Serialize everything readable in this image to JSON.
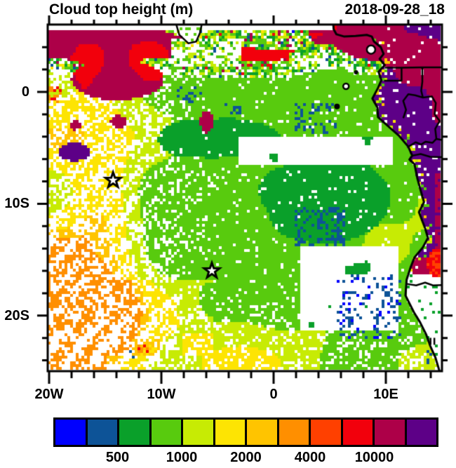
{
  "window": {
    "title": "Cloud top height (m)",
    "timestamp": "2018-09-28_18"
  },
  "axes": {
    "x_ticks": [
      {
        "label": "20W",
        "lon": -20
      },
      {
        "label": "10W",
        "lon": -10
      },
      {
        "label": "0",
        "lon": 0
      },
      {
        "label": "10E",
        "lon": 10
      }
    ],
    "y_ticks": [
      {
        "label": "0",
        "lat": 0
      },
      {
        "label": "10S",
        "lat": -10
      },
      {
        "label": "20S",
        "lat": -20
      }
    ],
    "minor_tick_interval_deg": 2
  },
  "colorbar": {
    "colors": [
      "#0000FE",
      "#0D5397",
      "#0AA02A",
      "#58CB0E",
      "#C7EB04",
      "#FDE403",
      "#FFC400",
      "#FF8F00",
      "#FF4000",
      "#F2000C",
      "#AD0048",
      "#5D0087"
    ],
    "labels": [
      {
        "text": "500",
        "boundary": 2
      },
      {
        "text": "1000",
        "boundary": 4
      },
      {
        "text": "2000",
        "boundary": 6
      },
      {
        "text": "4000",
        "boundary": 8
      },
      {
        "text": "10000",
        "boundary": 10
      }
    ]
  },
  "chart_data": {
    "type": "heatmap",
    "title": "Cloud top height (m)",
    "timestamp": "2018-09-28_18",
    "units": "m",
    "lon_range": [
      -20,
      15
    ],
    "lat_range": [
      -25,
      6
    ],
    "grid_on": false,
    "legend_position": "bottom",
    "labeled_levels": [
      500,
      1000,
      2000,
      4000,
      10000
    ],
    "markers": [
      {
        "type": "star",
        "lon": -14.3,
        "lat": -7.9
      },
      {
        "type": "star",
        "lon": -5.5,
        "lat": -16.0
      }
    ],
    "islands": [
      {
        "name": "bioko",
        "lon": 8.68,
        "lat": 3.78,
        "style": "ring",
        "r": 6
      },
      {
        "name": "principe",
        "lon": 7.35,
        "lat": 1.75,
        "style": "dot",
        "r": 3
      },
      {
        "name": "sao-tome",
        "lon": 6.45,
        "lat": 0.5,
        "style": "ring",
        "r": 4
      },
      {
        "name": "annobon",
        "lon": 5.65,
        "lat": -1.3,
        "style": "dot",
        "r": 4
      }
    ],
    "port_symbol": {
      "lon": 14.15,
      "lat": -22.3
    },
    "coastline": [
      [
        5.3,
        6.3
      ],
      [
        5.35,
        5.6
      ],
      [
        5.6,
        5.15
      ],
      [
        6.3,
        4.95
      ],
      [
        7.3,
        5.0
      ],
      [
        8.3,
        5.1
      ],
      [
        8.75,
        4.95
      ],
      [
        8.95,
        4.5
      ],
      [
        9.55,
        4.0
      ],
      [
        9.8,
        3.4
      ],
      [
        9.45,
        2.95
      ],
      [
        9.9,
        2.4
      ],
      [
        9.35,
        1.8
      ],
      [
        9.6,
        1.05
      ],
      [
        9.3,
        0.35
      ],
      [
        8.8,
        -0.6
      ],
      [
        9.25,
        -1.4
      ],
      [
        9.3,
        -2.25
      ],
      [
        10.35,
        -3.2
      ],
      [
        11.2,
        -3.95
      ],
      [
        12.0,
        -4.9
      ],
      [
        12.35,
        -5.7
      ],
      [
        12.1,
        -6.05
      ],
      [
        12.55,
        -6.45
      ],
      [
        12.8,
        -7.7
      ],
      [
        13.1,
        -8.8
      ],
      [
        13.4,
        -9.85
      ],
      [
        12.95,
        -10.75
      ],
      [
        13.5,
        -12.2
      ],
      [
        13.75,
        -13.05
      ],
      [
        13.3,
        -13.9
      ],
      [
        12.55,
        -14.8
      ],
      [
        12.2,
        -15.7
      ],
      [
        11.85,
        -16.8
      ],
      [
        11.75,
        -18.2
      ],
      [
        12.5,
        -19.7
      ],
      [
        13.05,
        -20.6
      ],
      [
        13.6,
        -21.7
      ],
      [
        13.95,
        -22.7
      ],
      [
        14.4,
        -23.7
      ],
      [
        14.85,
        -25.2
      ]
    ],
    "liberia_coast": [
      [
        -8.75,
        6.3
      ],
      [
        -8.4,
        5.1
      ],
      [
        -7.6,
        4.35
      ],
      [
        -6.9,
        4.5
      ],
      [
        -6.55,
        5.3
      ],
      [
        -6.35,
        6.3
      ]
    ],
    "borders": [
      [
        [
          9.9,
          2.16
        ],
        [
          11.4,
          2.16
        ],
        [
          11.4,
          1.0
        ],
        [
          9.85,
          1.0
        ]
      ],
      [
        [
          11.4,
          2.16
        ],
        [
          13.25,
          2.2
        ],
        [
          15.5,
          2.2
        ]
      ],
      [
        [
          13.25,
          2.2
        ],
        [
          13.25,
          0.9
        ],
        [
          13.15,
          0.1
        ],
        [
          13.3,
          -0.5
        ]
      ],
      [
        [
          11.55,
          -2.35
        ],
        [
          11.8,
          -1.6
        ],
        [
          11.55,
          -0.8
        ],
        [
          12.0,
          -0.2
        ],
        [
          12.6,
          -0.3
        ],
        [
          13.3,
          -0.5
        ],
        [
          14.1,
          -0.4
        ],
        [
          14.45,
          -1.0
        ],
        [
          14.35,
          -2.0
        ],
        [
          14.8,
          -2.6
        ],
        [
          14.4,
          -3.3
        ],
        [
          14.5,
          -4.2
        ]
      ],
      [
        [
          12.0,
          -4.9
        ],
        [
          12.65,
          -4.5
        ],
        [
          13.15,
          -4.7
        ],
        [
          13.55,
          -4.45
        ],
        [
          14.15,
          -4.55
        ],
        [
          14.5,
          -4.2
        ],
        [
          15.5,
          -4.4
        ]
      ],
      [
        [
          12.35,
          -5.7
        ],
        [
          13.1,
          -5.55
        ],
        [
          13.95,
          -5.8
        ],
        [
          15.5,
          -5.85
        ]
      ],
      [
        [
          11.78,
          -17.15
        ],
        [
          12.7,
          -17.3
        ],
        [
          13.5,
          -17.05
        ],
        [
          14.2,
          -17.3
        ],
        [
          15.5,
          -17.25
        ]
      ]
    ],
    "features": {
      "itcz_lat_min": 1.5,
      "itcz_holes": [
        [
          -9.2,
          -2.8,
          2.2,
          4.8
        ],
        [
          1.3,
          4.6,
          1.9,
          3.4
        ]
      ],
      "red_boxes": [
        [
          -20.1,
          -18.2,
          3.2,
          5.6
        ],
        [
          -3.6,
          4.6,
          2.2,
          5.3
        ],
        [
          13.6,
          15.3,
          4.2,
          5.8
        ]
      ],
      "nw_blob": {
        "center": [
          -13.9,
          1.1
        ],
        "radii": [
          4.2,
          1.75
        ]
      },
      "maroon_spots": [
        {
          "center": [
            -17.65,
            -3.0
          ],
          "radii": [
            0.55,
            0.4
          ]
        },
        {
          "center": [
            -13.8,
            -2.65
          ],
          "radii": [
            0.75,
            0.55
          ]
        },
        {
          "center": [
            -5.95,
            -2.7
          ],
          "radii": [
            0.6,
            0.95
          ]
        }
      ],
      "purple_ocean_blob": {
        "center": [
          -17.75,
          -5.35
        ],
        "radii": [
          1.35,
          0.85
        ]
      },
      "dark_green": [
        {
          "center": [
            -5.0,
            -4.1
          ],
          "radii": [
            5.3,
            1.9
          ]
        },
        {
          "center": [
            4.9,
            -9.7
          ],
          "radii": [
            6.0,
            3.9
          ]
        }
      ],
      "clear_zones": [
        [
          2.4,
          11.2,
          -21.4,
          -13.7
        ],
        [
          -3.2,
          10.5,
          -6.6,
          -4.1
        ]
      ],
      "blue_clusters": [
        {
          "box": [
            1.8,
            5.7,
            -3.8,
            -1.1
          ],
          "density": 0.3
        },
        {
          "box": [
            1.9,
            6.4,
            -13.9,
            -10.2
          ],
          "density": 0.3
        },
        {
          "box": [
            5.6,
            11.3,
            -22.2,
            -16.2
          ],
          "density": 0.22,
          "pure_blue": true
        },
        {
          "box": [
            -8.8,
            -6.1,
            -1.0,
            0.8
          ],
          "density": 0.18
        },
        {
          "box": [
            -4.3,
            -3.0,
            -2.1,
            -0.9
          ],
          "density": 0.2
        },
        {
          "box": [
            13.6,
            14.6,
            -24.6,
            -22.9
          ],
          "density": 0.25
        },
        {
          "box": [
            -13.7,
            -11.3,
            -24.6,
            -23.2
          ],
          "density": 0.05
        }
      ],
      "yellow_sw_box": [
        -14.3,
        -5.4,
        -23.6,
        -16.8
      ],
      "golden_specks_box": [
        -12.5,
        -10.2,
        -23.7,
        -22.2
      ],
      "orange_specks": [
        [
          -20.1,
          -19.0,
          -0.9,
          0.5
        ],
        [
          -12.0,
          -11.2,
          -23.4,
          -22.7
        ]
      ],
      "solid_wedge": {
        "center": [
          -4.5,
          -16.5
        ],
        "radii": [
          5.0,
          4.0
        ]
      },
      "land_red_blob": {
        "center": [
          14.6,
          -15.3
        ],
        "radii": [
          0.95,
          1.25
        ]
      }
    },
    "regions_description": [
      "Deep convection band (~10000 m, dark red) with red cores along the ITCZ across the northern edge, purple very high tops over Cameroon/Congo basin land in the NE",
      "Purple (highest tops) over central African land east of the coastline, with maroon patches and a red/orange blob near 14.5E 15S",
      "Large green stratocumulus deck (500-1000 m) over the central SE Atlantic with a darker green core near 5E 10S",
      "Yellow-green/chartreuse and yellow broken cloud streets (1000-2000 m) in the southwest quadrant with sparse orange patches",
      "Steel-blue low-cloud speckles (250-500 m) near 4E 2S, 4E 12S and along the Namibian coast",
      "Clear (white) zones off Angola/Namibia around 3-11E 14-21S and a clear lane near 0-10E 4-6.5S",
      "Two open star markers at 14.3W 7.9S and 5.5W 16S"
    ]
  }
}
